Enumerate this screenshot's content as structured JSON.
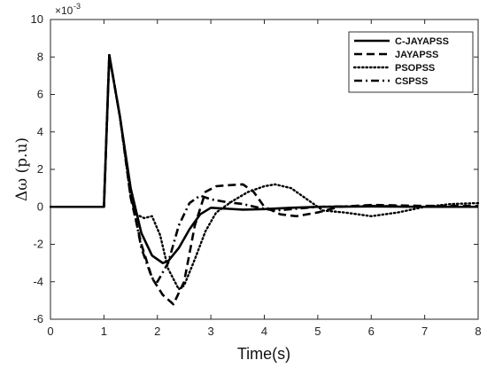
{
  "chart_data": {
    "type": "line",
    "title": "",
    "xlabel": "Time(s)",
    "ylabel": "Δω (p.u)",
    "y_multiplier_label": "×10",
    "y_multiplier_exp": "-3",
    "xlim": [
      0,
      8
    ],
    "ylim": [
      -6,
      10
    ],
    "xticks": [
      0,
      1,
      2,
      3,
      4,
      5,
      6,
      7,
      8
    ],
    "yticks": [
      -6,
      -4,
      -2,
      0,
      2,
      4,
      6,
      8,
      10
    ],
    "grid": false,
    "legend_position": "top-right",
    "series": [
      {
        "name": "C-JAYAPSS",
        "style": "solid",
        "color": "#000000",
        "x": [
          0,
          1.0,
          1.1,
          1.3,
          1.5,
          1.7,
          1.9,
          2.1,
          2.2,
          2.4,
          2.6,
          2.8,
          3.0,
          3.3,
          3.6,
          4.0,
          4.5,
          5.0,
          6.0,
          7.0,
          8.0
        ],
        "y": [
          0,
          0,
          8.1,
          4.8,
          1.0,
          -1.4,
          -2.6,
          -3.0,
          -2.9,
          -2.2,
          -1.2,
          -0.4,
          -0.05,
          -0.1,
          -0.15,
          -0.12,
          -0.05,
          0.0,
          0.02,
          0.0,
          0.0
        ]
      },
      {
        "name": "JAYAPSS",
        "style": "dashed",
        "color": "#000000",
        "x": [
          0,
          1.0,
          1.1,
          1.3,
          1.5,
          1.7,
          1.9,
          2.1,
          2.3,
          2.5,
          2.7,
          2.9,
          3.1,
          3.3,
          3.6,
          3.8,
          4.0,
          4.3,
          4.6,
          5.0,
          5.4,
          6.0,
          7.0,
          8.0
        ],
        "y": [
          0,
          0,
          8.1,
          4.8,
          0.5,
          -2.0,
          -3.8,
          -4.7,
          -5.2,
          -4.0,
          -1.0,
          0.8,
          1.1,
          1.15,
          1.2,
          0.8,
          0.0,
          -0.4,
          -0.5,
          -0.3,
          0.0,
          0.1,
          0.05,
          0.05
        ]
      },
      {
        "name": "PSOPSS",
        "style": "dotted",
        "color": "#000000",
        "x": [
          0,
          1.0,
          1.1,
          1.3,
          1.5,
          1.6,
          1.75,
          1.9,
          2.05,
          2.2,
          2.4,
          2.5,
          2.7,
          2.9,
          3.1,
          3.4,
          3.7,
          4.0,
          4.2,
          4.5,
          4.8,
          5.1,
          5.5,
          6.0,
          6.5,
          7.0,
          7.5,
          8.0
        ],
        "y": [
          0,
          0,
          8.1,
          4.8,
          0.5,
          -0.4,
          -0.6,
          -0.5,
          -1.5,
          -3.3,
          -4.4,
          -4.2,
          -2.8,
          -1.3,
          -0.3,
          0.3,
          0.8,
          1.1,
          1.2,
          1.0,
          0.4,
          -0.2,
          -0.3,
          -0.5,
          -0.3,
          0.0,
          0.15,
          0.2
        ]
      },
      {
        "name": "CSPSS",
        "style": "dashdot",
        "color": "#000000",
        "x": [
          0,
          1.0,
          1.1,
          1.3,
          1.5,
          1.7,
          1.9,
          2.0,
          2.2,
          2.4,
          2.6,
          2.8,
          3.0,
          3.3,
          3.6,
          3.9,
          4.2,
          4.6,
          5.0,
          6.0,
          7.0,
          8.0
        ],
        "y": [
          0,
          0,
          8.1,
          4.8,
          0.8,
          -2.2,
          -3.8,
          -4.0,
          -3.0,
          -1.0,
          0.2,
          0.6,
          0.4,
          0.25,
          0.15,
          -0.05,
          -0.2,
          -0.1,
          0.0,
          0.05,
          0.0,
          0.0
        ]
      }
    ]
  }
}
